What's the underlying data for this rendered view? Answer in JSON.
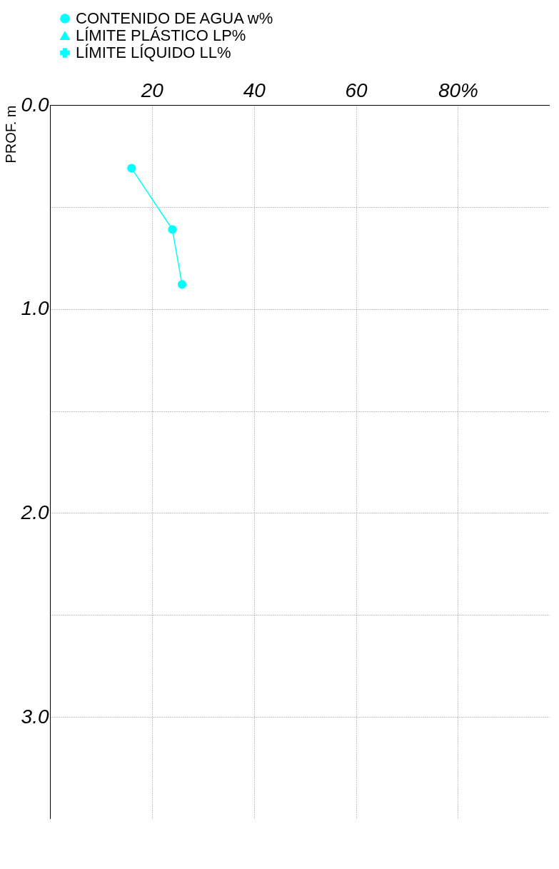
{
  "chart_data": {
    "type": "line",
    "ylabel": "PROF. m",
    "legend": "top",
    "grid": true,
    "line_style": "solid",
    "xlim": [
      0,
      98
    ],
    "ylim": [
      3.5,
      0
    ],
    "xticks": [
      20,
      40,
      60,
      {
        "value": 80,
        "label": "80%"
      }
    ],
    "yticks": [
      {
        "value": 0,
        "label": "0.0"
      },
      {
        "value": 0.5,
        "label": null
      },
      {
        "value": 1,
        "label": "1.0"
      },
      {
        "value": 1.5,
        "label": null
      },
      {
        "value": 2,
        "label": "2.0"
      },
      {
        "value": 2.5,
        "label": null
      },
      {
        "value": 3,
        "label": "3.0"
      }
    ],
    "series": [
      {
        "name": "CONTENIDO DE AGUA w%",
        "color": "#00ffff",
        "marker": "circle",
        "x": [
          16.0,
          24.0,
          25.9
        ],
        "values": [
          0.31,
          0.61,
          0.88
        ]
      },
      {
        "name": "LÍMITE PLÁSTICO LP%",
        "color": "#00ffff",
        "marker": "triangle"
      },
      {
        "name": "LÍMITE LÍQUIDO LL%",
        "color": "#00ffff",
        "marker": "cross"
      }
    ]
  }
}
